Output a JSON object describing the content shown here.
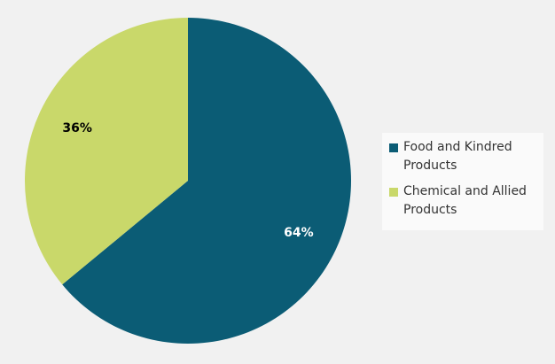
{
  "chart_data": {
    "type": "pie",
    "categories": [
      "Food and Kindred Products",
      "Chemical and Allied Products"
    ],
    "values": [
      64,
      36
    ],
    "value_labels": [
      "64%",
      "36%"
    ],
    "colors": [
      "#0b5c75",
      "#c9d86a"
    ]
  }
}
